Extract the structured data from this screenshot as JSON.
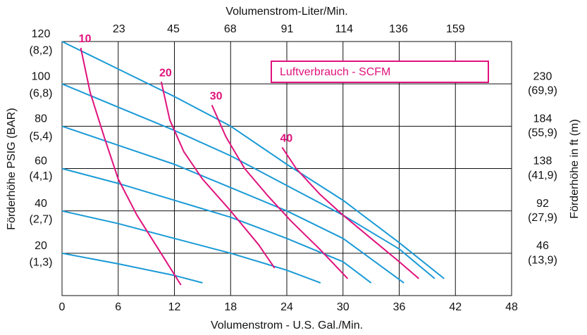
{
  "chart_data": {
    "type": "line",
    "title_top": "Volumenstrom-Liter/Min.",
    "xlabel": "Volumenstrom - U.S. Gal./Min.",
    "ylabel": "Förderhöhe PSIG (BAR)",
    "y2label": "Förderhöhe in ft (m)",
    "legend_title": "Luftverbrauch - SCFM",
    "xlim": [
      0,
      48
    ],
    "xticks": [
      0,
      6,
      12,
      18,
      24,
      30,
      36,
      42,
      48
    ],
    "x2lim": [
      0,
      181.7
    ],
    "x2ticks": [
      23,
      45,
      68,
      91,
      114,
      136,
      159
    ],
    "ylim": [
      0,
      120
    ],
    "yticks": [
      20,
      40,
      60,
      80,
      100,
      120
    ],
    "ybar_lim": [
      0,
      8.27
    ],
    "ybar_ticks": [
      {
        "value": 1.3,
        "label": "(1,3)"
      },
      {
        "value": 2.7,
        "label": "(2,7)"
      },
      {
        "value": 4.1,
        "label": "(4,1)"
      },
      {
        "value": 5.4,
        "label": "(5,4)"
      },
      {
        "value": 6.8,
        "label": "(6,8)"
      },
      {
        "value": 8.2,
        "label": "(8,2)"
      }
    ],
    "y2lim": [
      0,
      276
    ],
    "y2ticks": [
      46,
      92,
      138,
      184,
      230
    ],
    "ym_lim": [
      0,
      83.9
    ],
    "ym_ticks": [
      {
        "value": 13.9,
        "label": "(13,9)"
      },
      {
        "value": 27.9,
        "label": "(27,9)"
      },
      {
        "value": 41.9,
        "label": "(41,9)"
      },
      {
        "value": 55.9,
        "label": "(55,9)"
      },
      {
        "value": 69.9,
        "label": "(69,9)"
      }
    ],
    "grid": true,
    "series": [
      {
        "color": "#1a9ad6",
        "x": [
          0,
          6,
          12,
          18,
          24,
          30,
          36,
          40.8
        ],
        "values": [
          120,
          107,
          94,
          80,
          62,
          45,
          25,
          8
        ]
      },
      {
        "color": "#1a9ad6",
        "x": [
          0,
          6,
          12,
          18,
          24,
          30,
          36,
          39.8
        ],
        "values": [
          100,
          89,
          78,
          66,
          52,
          38,
          22,
          8
        ]
      },
      {
        "color": "#1a9ad6",
        "x": [
          0,
          6,
          12,
          18,
          24,
          30,
          36.5
        ],
        "values": [
          80,
          71,
          62,
          51,
          40,
          27,
          6
        ]
      },
      {
        "color": "#1a9ad6",
        "x": [
          0,
          6,
          12,
          18,
          24,
          30,
          33
        ],
        "values": [
          60,
          53,
          45,
          37,
          27,
          16,
          6
        ]
      },
      {
        "color": "#1a9ad6",
        "x": [
          0,
          6,
          12,
          18,
          24,
          27.6
        ],
        "values": [
          40,
          34,
          27,
          20,
          12,
          6
        ]
      },
      {
        "color": "#1a9ad6",
        "x": [
          0,
          6,
          12,
          15
        ],
        "values": [
          20,
          15,
          9.5,
          6
        ]
      },
      {
        "name": "10",
        "color": "#e0127d",
        "x": [
          2.0,
          3,
          4.5,
          6,
          8,
          10,
          12.7
        ],
        "values": [
          117,
          96,
          75,
          55,
          38,
          24,
          5
        ]
      },
      {
        "name": "20",
        "color": "#e0127d",
        "x": [
          10.6,
          11.5,
          13,
          15,
          18,
          21,
          22.7
        ],
        "values": [
          101,
          83,
          68,
          55,
          40,
          24,
          13
        ]
      },
      {
        "name": "30",
        "color": "#e0127d",
        "x": [
          16,
          17.5,
          19.5,
          22,
          24.5,
          27.5,
          30.5
        ],
        "values": [
          90,
          75,
          60,
          47,
          35,
          22,
          8
        ]
      },
      {
        "name": "40",
        "color": "#e0127d",
        "x": [
          23.5,
          25,
          27.5,
          30,
          33,
          36,
          38.1
        ],
        "values": [
          70,
          60,
          48,
          38,
          27,
          16,
          8
        ]
      }
    ]
  }
}
